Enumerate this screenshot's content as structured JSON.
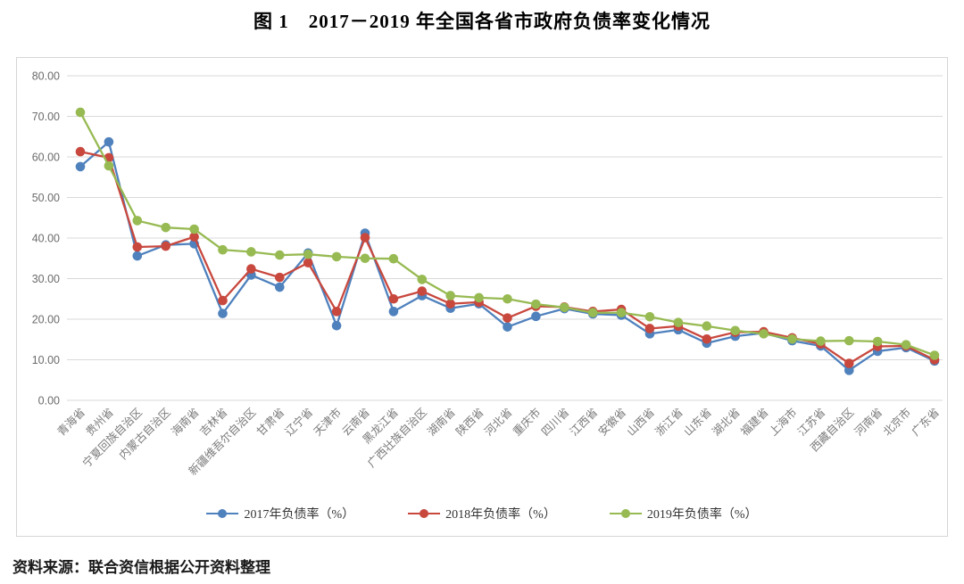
{
  "title": "图 1　2017－2019 年全国各省市政府负债率变化情况",
  "source_note": "资料来源：联合资信根据公开资料整理",
  "chart_data": {
    "type": "line",
    "title": "图 1　2017－2019 年全国各省市政府负债率变化情况",
    "xlabel": "",
    "ylabel": "",
    "ylim": [
      0,
      80
    ],
    "ytick_step": 10,
    "ytick_labels": [
      "0.00",
      "10.00",
      "20.00",
      "30.00",
      "40.00",
      "50.00",
      "60.00",
      "70.00",
      "80.00"
    ],
    "grid": "horizontal",
    "legend_position": "bottom",
    "marker": "circle",
    "categories": [
      "青海省",
      "贵州省",
      "宁夏回族自治区",
      "内蒙古自治区",
      "海南省",
      "吉林省",
      "新疆维吾尔自治区",
      "甘肃省",
      "辽宁省",
      "天津市",
      "云南省",
      "黑龙江省",
      "广西壮族自治区",
      "湖南省",
      "陕西省",
      "河北省",
      "重庆市",
      "四川省",
      "江西省",
      "安徽省",
      "山西省",
      "浙江省",
      "山东省",
      "湖北省",
      "福建省",
      "上海市",
      "江苏省",
      "西藏自治区",
      "河南省",
      "北京市",
      "广东省"
    ],
    "series": [
      {
        "name": "2017年负债率（%）",
        "color": "#4f81bd",
        "values": [
          57.6,
          63.7,
          35.6,
          38.3,
          38.6,
          21.4,
          30.9,
          27.9,
          36.3,
          18.4,
          41.2,
          21.9,
          25.8,
          22.7,
          23.8,
          18.1,
          20.7,
          22.6,
          21.3,
          21.0,
          16.4,
          17.4,
          14.1,
          15.8,
          16.6,
          14.7,
          13.4,
          7.4,
          12.1,
          13.0,
          9.7
        ]
      },
      {
        "name": "2018年负债率（%）",
        "color": "#c8483e",
        "values": [
          61.3,
          59.8,
          37.8,
          38.0,
          40.3,
          24.6,
          32.4,
          30.3,
          33.9,
          21.9,
          40.1,
          25.0,
          26.9,
          23.8,
          24.2,
          20.3,
          23.2,
          23.0,
          21.9,
          22.4,
          17.7,
          18.3,
          15.1,
          16.8,
          16.9,
          15.4,
          13.9,
          9.1,
          13.3,
          13.4,
          10.0
        ]
      },
      {
        "name": "2019年负债率（%）",
        "color": "#97ba52",
        "values": [
          71.0,
          57.8,
          44.3,
          42.6,
          42.2,
          37.1,
          36.6,
          35.8,
          36.0,
          35.4,
          35.0,
          34.9,
          29.8,
          25.8,
          25.3,
          25.0,
          23.7,
          22.9,
          21.6,
          21.6,
          20.6,
          19.2,
          18.3,
          17.2,
          16.4,
          15.1,
          14.6,
          14.7,
          14.5,
          13.7,
          11.1
        ]
      }
    ]
  }
}
